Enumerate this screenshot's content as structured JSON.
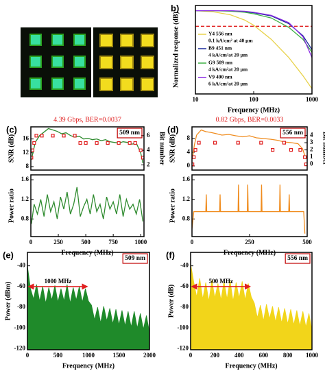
{
  "chart_data": [
    {
      "type": "line",
      "panel_label": "b)",
      "x_label": "Frequency (MHz)",
      "y_label": "Normalized response (dB)",
      "xlog": true,
      "xlim": [
        10,
        1000
      ],
      "ylim": [
        -16,
        1
      ],
      "xticks": [
        10,
        100,
        1000
      ],
      "hline": -3,
      "hline_color": "#e02020",
      "series": [
        {
          "name": "Y4 556 nm",
          "detail": "0.1 kA/cm² at 40 μm",
          "color": "#e8d24a",
          "x": [
            10,
            20,
            40,
            70,
            100,
            200,
            400,
            700,
            1000
          ],
          "values": [
            0,
            -0.2,
            -0.8,
            -1.8,
            -2.8,
            -5.5,
            -9,
            -12.5,
            -15
          ]
        },
        {
          "name": "B9 451 nm",
          "detail": "4 kA/cm²at 20 μm",
          "color": "#1a2a9a",
          "x": [
            10,
            20,
            40,
            70,
            100,
            200,
            400,
            700,
            1000
          ],
          "values": [
            0,
            0,
            0,
            -0.2,
            -0.4,
            -1,
            -2.5,
            -4.8,
            -7.5
          ]
        },
        {
          "name": "G9 509 nm",
          "detail": "4 kA/cm²at 20 μm",
          "color": "#3cb043",
          "x": [
            10,
            20,
            40,
            70,
            100,
            200,
            400,
            700,
            1000
          ],
          "values": [
            0,
            0,
            -0.1,
            -0.3,
            -0.6,
            -1.4,
            -3.2,
            -5.5,
            -8
          ]
        },
        {
          "name": "V9  400 nm",
          "detail": "6 kA/cm²at 20 μm",
          "color": "#8a2be2",
          "x": [
            10,
            20,
            40,
            70,
            100,
            200,
            400,
            700,
            1000
          ],
          "values": [
            0,
            0,
            0,
            -0.1,
            -0.3,
            -0.9,
            -2.3,
            -5,
            -9
          ]
        }
      ]
    },
    {
      "type": "line",
      "panel_label": "(c)",
      "title": "4.39 Gbps, BER=0.0037",
      "tag": "509 nm",
      "y_label": "SNR (dB)",
      "y2_label": "Bit number",
      "xlim": [
        0,
        1030
      ],
      "ylim": [
        7,
        19.5
      ],
      "yticks": [
        8,
        12,
        16
      ],
      "y2lim": [
        1.3,
        7.2
      ],
      "y2ticks": [
        2,
        4,
        6
      ],
      "series": [
        {
          "type": "line",
          "color": "#2e8b2e",
          "x": [
            5,
            40,
            80,
            120,
            160,
            200,
            240,
            280,
            320,
            360,
            400,
            440,
            480,
            520,
            560,
            600,
            640,
            680,
            720,
            760,
            800,
            840,
            880,
            920,
            960,
            1000,
            1020
          ],
          "values": [
            10,
            15,
            17,
            18,
            19,
            18.6,
            18.2,
            17.5,
            17.8,
            17,
            16.5,
            16.8,
            16,
            16.2,
            15.8,
            16,
            15.5,
            15.8,
            15.2,
            15,
            14.8,
            15.2,
            15,
            14.5,
            14.8,
            12,
            9
          ]
        },
        {
          "type": "scatter",
          "axis": "y2",
          "color": "#e02020",
          "x": [
            5,
            15,
            30,
            50,
            100,
            200,
            300,
            400,
            450,
            500,
            600,
            700,
            800,
            900,
            950,
            1000,
            1020
          ],
          "values": [
            3,
            4,
            5,
            6,
            6,
            6,
            6,
            6,
            5,
            5,
            5,
            5,
            5,
            5,
            5,
            4,
            3
          ]
        }
      ]
    },
    {
      "type": "line",
      "x_label": "Frequency (MHz)",
      "y_label": "Power ratio",
      "xlim": [
        0,
        1030
      ],
      "ylim": [
        0.44,
        1.7
      ],
      "xticks": [
        0,
        250,
        500,
        750,
        1000
      ],
      "yticks": [
        0.8,
        1.2,
        1.6
      ],
      "series": [
        {
          "type": "line",
          "color": "#2e8b2e",
          "x": [
            5,
            30,
            60,
            90,
            120,
            150,
            180,
            210,
            240,
            270,
            300,
            330,
            360,
            390,
            420,
            450,
            480,
            510,
            540,
            570,
            600,
            630,
            660,
            690,
            720,
            750,
            780,
            810,
            840,
            870,
            900,
            930,
            960,
            990,
            1020
          ],
          "values": [
            0.7,
            1.1,
            0.9,
            1.2,
            0.85,
            1.3,
            0.95,
            1.15,
            0.8,
            1.25,
            1.0,
            1.35,
            0.9,
            1.1,
            1.45,
            0.85,
            1.05,
            1.2,
            0.9,
            1.3,
            0.95,
            1.1,
            0.8,
            1.25,
            1.0,
            1.15,
            0.9,
            1.3,
            0.85,
            1.2,
            1.0,
            1.1,
            0.9,
            1.2,
            0.75
          ]
        }
      ]
    },
    {
      "type": "line",
      "panel_label": "(d)",
      "title": "0.82 Gbps, BER=0.0033",
      "tag": "556 nm",
      "y_label": "SNR (dB)",
      "y2_label": "Bit number",
      "xlim": [
        0,
        500
      ],
      "ylim": [
        -1.2,
        11.4
      ],
      "yticks": [
        0,
        4,
        8
      ],
      "y2lim": [
        -0.8,
        5.2
      ],
      "y2ticks": [
        0,
        1,
        2,
        3,
        4
      ],
      "series": [
        {
          "type": "line",
          "color": "#f08c1e",
          "x": [
            2,
            10,
            20,
            40,
            60,
            80,
            100,
            130,
            160,
            190,
            220,
            250,
            280,
            310,
            340,
            370,
            400,
            430,
            460,
            480,
            495
          ],
          "values": [
            2,
            6,
            9,
            10.5,
            10,
            9.8,
            9.5,
            9,
            9.2,
            8.8,
            8.5,
            8.8,
            8.2,
            8,
            7.8,
            7.5,
            7,
            6.8,
            6.5,
            5,
            2
          ]
        },
        {
          "type": "scatter",
          "axis": "y2",
          "color": "#e02020",
          "x": [
            2,
            8,
            15,
            30,
            100,
            200,
            300,
            350,
            400,
            430,
            470,
            490,
            495
          ],
          "values": [
            0,
            1,
            2,
            3,
            3,
            3,
            3,
            2,
            3,
            2,
            2,
            1,
            0
          ]
        }
      ]
    },
    {
      "type": "line",
      "x_label": "Frequency (MHz)",
      "y_label": "Power ratio",
      "xlim": [
        0,
        500
      ],
      "ylim": [
        0.44,
        1.7
      ],
      "xticks": [
        0,
        250,
        500
      ],
      "yticks": [
        0.8,
        1.2,
        1.6
      ],
      "series": [
        {
          "type": "line",
          "color": "#f08c1e",
          "x": [
            0,
            8,
            10,
            60,
            62,
            64,
            120,
            122,
            124,
            200,
            202,
            204,
            240,
            242,
            244,
            300,
            302,
            304,
            380,
            382,
            384,
            420,
            422,
            424,
            485,
            490
          ],
          "values": [
            0.6,
            0.95,
            0.95,
            0.95,
            1.3,
            0.95,
            0.95,
            1.3,
            0.95,
            0.95,
            1.5,
            0.95,
            0.95,
            1.5,
            0.95,
            0.95,
            1.5,
            0.95,
            0.95,
            1.5,
            0.95,
            0.95,
            1.3,
            0.95,
            0.95,
            0.5
          ]
        }
      ]
    },
    {
      "type": "area",
      "panel_label": "(e)",
      "tag": "509 nm",
      "x_label": "Frequency (MHz)",
      "y_label": "Power (dBm)",
      "xlim": [
        0,
        2000
      ],
      "ylim": [
        -121,
        -27
      ],
      "xticks": [
        0,
        500,
        1000,
        1500,
        2000
      ],
      "yticks": [
        -40,
        -60,
        -80,
        -100,
        -120
      ],
      "arrow": {
        "label": "1000 MHz",
        "x": [
          0,
          1000
        ],
        "y": -60,
        "color": "#e02020"
      },
      "series": [
        {
          "type": "area",
          "color": "#1f8a2a",
          "x": [
            0,
            50,
            100,
            150,
            200,
            250,
            300,
            350,
            400,
            450,
            500,
            550,
            600,
            650,
            700,
            750,
            800,
            850,
            900,
            950,
            1000,
            1050,
            1100,
            1150,
            1200,
            1250,
            1300,
            1350,
            1400,
            1450,
            1500,
            1550,
            1600,
            1650,
            1700,
            1750,
            1800,
            1850,
            1900,
            1950,
            2000
          ],
          "values": [
            -40,
            -62,
            -72,
            -58,
            -74,
            -60,
            -76,
            -61,
            -73,
            -59,
            -75,
            -62,
            -74,
            -58,
            -76,
            -61,
            -73,
            -60,
            -75,
            -62,
            -74,
            -78,
            -92,
            -80,
            -95,
            -79,
            -93,
            -81,
            -96,
            -82,
            -97,
            -83,
            -98,
            -84,
            -99,
            -84,
            -100,
            -86,
            -101,
            -88,
            -104
          ]
        }
      ]
    },
    {
      "type": "area",
      "panel_label": "(f)",
      "tag": "556 nm",
      "x_label": "Frequency (MHz)",
      "y_label": "Power (dB)",
      "xlim": [
        0,
        1000
      ],
      "ylim": [
        -121,
        -27
      ],
      "xticks": [
        0,
        200,
        400,
        600,
        800,
        1000
      ],
      "yticks": [
        -40,
        -60,
        -80,
        -100,
        -120
      ],
      "arrow": {
        "label": "500 MHz",
        "x": [
          0,
          500
        ],
        "y": -60,
        "color": "#e02020"
      },
      "series": [
        {
          "type": "area",
          "color": "#f2d51a",
          "x": [
            0,
            25,
            50,
            75,
            100,
            125,
            150,
            175,
            200,
            225,
            250,
            275,
            300,
            325,
            350,
            375,
            400,
            425,
            450,
            475,
            500,
            525,
            550,
            575,
            600,
            625,
            650,
            675,
            700,
            725,
            750,
            775,
            800,
            825,
            850,
            875,
            900,
            925,
            950,
            975,
            1000
          ],
          "values": [
            -38,
            -55,
            -70,
            -52,
            -72,
            -56,
            -74,
            -54,
            -71,
            -57,
            -73,
            -55,
            -72,
            -54,
            -74,
            -56,
            -71,
            -55,
            -73,
            -57,
            -70,
            -76,
            -90,
            -78,
            -93,
            -77,
            -91,
            -79,
            -94,
            -80,
            -95,
            -81,
            -96,
            -82,
            -97,
            -83,
            -98,
            -84,
            -99,
            -86,
            -102
          ]
        }
      ]
    }
  ]
}
